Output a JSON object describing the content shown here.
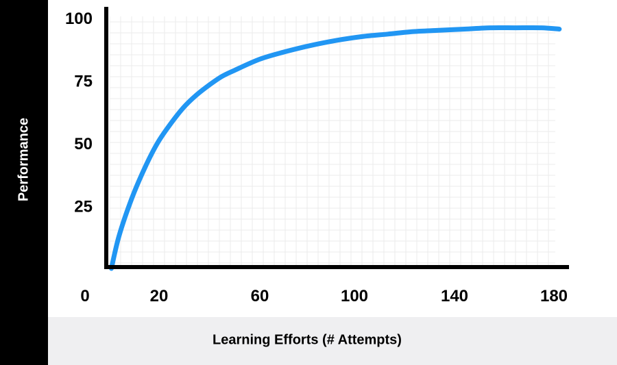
{
  "chart_data": {
    "type": "line",
    "title": "",
    "xlabel": "Learning Efforts (# Attempts)",
    "ylabel": "Performance",
    "xlim": [
      0,
      180
    ],
    "ylim": [
      0,
      100
    ],
    "x_ticks": [
      "0",
      "20",
      "60",
      "100",
      "140",
      "180"
    ],
    "y_ticks": [
      "25",
      "50",
      "75",
      "100"
    ],
    "grid": true,
    "legend": "none",
    "series": [
      {
        "color": "#2196f3",
        "x": [
          2,
          5,
          10,
          15,
          20,
          25,
          30,
          35,
          40,
          45,
          50,
          60,
          70,
          80,
          90,
          100,
          110,
          120,
          130,
          140,
          150,
          160,
          170,
          177
        ],
        "y": [
          0,
          13,
          28,
          40,
          50,
          57.5,
          64,
          69,
          73,
          76.5,
          79,
          83.5,
          86.5,
          89,
          91,
          92.5,
          93.5,
          94.5,
          95,
          95.5,
          96,
          96,
          96,
          95.5
        ]
      }
    ]
  },
  "colors": {
    "ylabel_band": "#000000",
    "xlabel_band": "#efeff1",
    "grid": "#ebebeb"
  }
}
